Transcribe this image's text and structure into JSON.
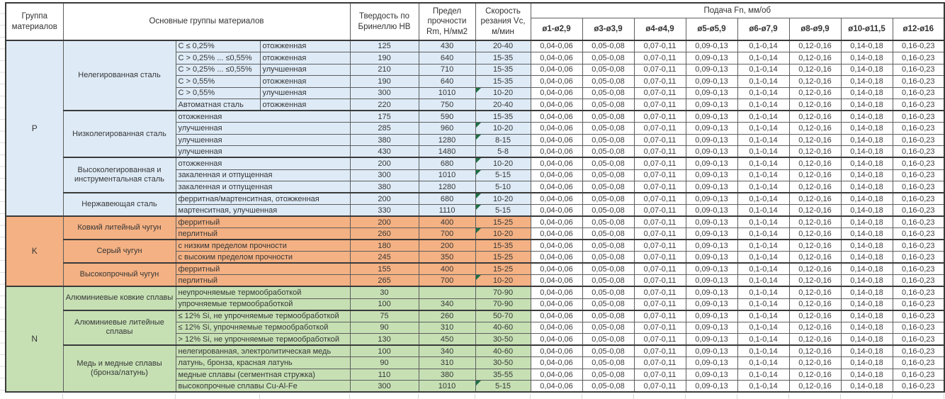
{
  "table": {
    "headers": {
      "group": "Группа материалов",
      "main": "Основные группы материалов",
      "hb": "Твердость по Бринеллю HB",
      "rm": "Предел прочности Rm, Н/мм2",
      "vc": "Скорость резания Vc, м/мин",
      "feed": "Подача Fn, мм/об"
    },
    "diameters": [
      "ø1-ø2,9",
      "ø3-ø3,9",
      "ø4-ø4,9",
      "ø5-ø5,9",
      "ø6-ø7,9",
      "ø8-ø9,9",
      "ø10-ø11,5",
      "ø12-ø16"
    ],
    "feed_values": [
      "0,04-0,06",
      "0,05-0,08",
      "0,07-0,11",
      "0,09-0,13",
      "0,1-0,14",
      "0,12-0,16",
      "0,14-0,18",
      "0,16-0,23"
    ],
    "note_flag_color": "#1E7145",
    "groups": [
      {
        "code": "P",
        "color": "#DEEBF7",
        "families": [
          {
            "name": "Нелегированная сталь",
            "rows": [
              {
                "spec": "C ≤ 0,25%",
                "state": "отожженная",
                "hb": "125",
                "rm": "430",
                "vc": "20-40",
                "flag": false
              },
              {
                "spec": "C > 0,25% ... ≤0,55%",
                "state": "отожженная",
                "hb": "190",
                "rm": "640",
                "vc": "15-35",
                "flag": false
              },
              {
                "spec": "C > 0,25% ... ≤0,55%",
                "state": "улучшенная",
                "hb": "210",
                "rm": "710",
                "vc": "15-35",
                "flag": false
              },
              {
                "spec": "C > 0,55%",
                "state": "отожженная",
                "hb": "190",
                "rm": "640",
                "vc": "15-35",
                "flag": false
              },
              {
                "spec": "C > 0,55%",
                "state": "улучшенная",
                "hb": "300",
                "rm": "1010",
                "vc": "10-20",
                "flag": true
              },
              {
                "spec": "Автоматная сталь",
                "state": "отожженная",
                "hb": "220",
                "rm": "750",
                "vc": "20-40",
                "flag": false
              }
            ]
          },
          {
            "name": "Низколегированная сталь",
            "rows": [
              {
                "spec": "отожженная",
                "state": null,
                "hb": "175",
                "rm": "590",
                "vc": "15-35",
                "flag": false
              },
              {
                "spec": "улучшенная",
                "state": null,
                "hb": "285",
                "rm": "960",
                "vc": "10-20",
                "flag": true
              },
              {
                "spec": "улучшенная",
                "state": null,
                "hb": "380",
                "rm": "1280",
                "vc": "8-15",
                "flag": true
              },
              {
                "spec": "улучшенная",
                "state": null,
                "hb": "430",
                "rm": "1480",
                "vc": "5-8",
                "flag": false
              }
            ]
          },
          {
            "name": "Высоколегированная и инструментальная сталь",
            "rows": [
              {
                "spec": "отожженная",
                "state": null,
                "hb": "200",
                "rm": "680",
                "vc": "10-20",
                "flag": true
              },
              {
                "spec": "закаленная и отпущенная",
                "state": null,
                "hb": "300",
                "rm": "1010",
                "vc": "5-15",
                "flag": true
              },
              {
                "spec": "закаленная и отпущенная",
                "state": null,
                "hb": "380",
                "rm": "1280",
                "vc": "5-10",
                "flag": false
              }
            ]
          },
          {
            "name": "Нержавеющая сталь",
            "rows": [
              {
                "spec": "ферритная/мартенситная, отожженная",
                "state": null,
                "hb": "200",
                "rm": "680",
                "vc": "10-20",
                "flag": true
              },
              {
                "spec": "мартенситная, улучшенная",
                "state": null,
                "hb": "330",
                "rm": "1110",
                "vc": "5-15",
                "flag": true
              }
            ]
          }
        ]
      },
      {
        "code": "K",
        "color": "#F4B183",
        "families": [
          {
            "name": "Ковкий литейный чугун",
            "rows": [
              {
                "spec": "ферритный",
                "state": null,
                "hb": "200",
                "rm": "400",
                "vc": "15-25",
                "flag": false
              },
              {
                "spec": "перлитный",
                "state": null,
                "hb": "260",
                "rm": "700",
                "vc": "10-20",
                "flag": true
              }
            ]
          },
          {
            "name": "Серый чугун",
            "rows": [
              {
                "spec": "с низким пределом прочности",
                "state": null,
                "hb": "180",
                "rm": "200",
                "vc": "15-35",
                "flag": false
              },
              {
                "spec": "с высоким пределом прочности",
                "state": null,
                "hb": "245",
                "rm": "350",
                "vc": "15-25",
                "flag": false
              }
            ]
          },
          {
            "name": "Высокопрочный чугун",
            "rows": [
              {
                "spec": "ферритный",
                "state": null,
                "hb": "155",
                "rm": "400",
                "vc": "15-25",
                "flag": false
              },
              {
                "spec": "перлитный",
                "state": null,
                "hb": "265",
                "rm": "700",
                "vc": "10-20",
                "flag": true
              }
            ]
          }
        ]
      },
      {
        "code": "N",
        "color": "#C6E0B4",
        "families": [
          {
            "name": "Алюминиевые ковкие сплавы",
            "rows": [
              {
                "spec": "неупрочняемые термообработкой",
                "state": null,
                "hb": "30",
                "rm": "",
                "vc": "70-90",
                "flag": false
              },
              {
                "spec": "упрочняемые термообработкой",
                "state": null,
                "hb": "100",
                "rm": "340",
                "vc": "70-90",
                "flag": false
              }
            ]
          },
          {
            "name": "Алюминиевые литейные сплавы",
            "rows": [
              {
                "spec": "≤ 12% Si, не упрочняемые термообработкой",
                "state": null,
                "hb": "75",
                "rm": "260",
                "vc": "50-70",
                "flag": false
              },
              {
                "spec": "≤ 12% Si, упрочняемые термообработкой",
                "state": null,
                "hb": "90",
                "rm": "310",
                "vc": "40-60",
                "flag": false
              },
              {
                "spec": "> 12% Si, не упрочняемые термообработкой",
                "state": null,
                "hb": "130",
                "rm": "450",
                "vc": "30-50",
                "flag": false
              }
            ]
          },
          {
            "name": "Медь и медные сплавы (бронза/латунь)",
            "rows": [
              {
                "spec": "нелегированная, электролитическая медь",
                "state": null,
                "hb": "100",
                "rm": "340",
                "vc": "40-60",
                "flag": false
              },
              {
                "spec": "латунь, бронза, красная латунь",
                "state": null,
                "hb": "90",
                "rm": "310",
                "vc": "30-50",
                "flag": false
              },
              {
                "spec": "медные сплавы (сегментная стружка)",
                "state": null,
                "hb": "110",
                "rm": "380",
                "vc": "35-55",
                "flag": false
              },
              {
                "spec": "высокопрочные сплавы Cu-Al-Fe",
                "state": null,
                "hb": "300",
                "rm": "1010",
                "vc": "5-15",
                "flag": true
              }
            ]
          }
        ]
      }
    ]
  }
}
